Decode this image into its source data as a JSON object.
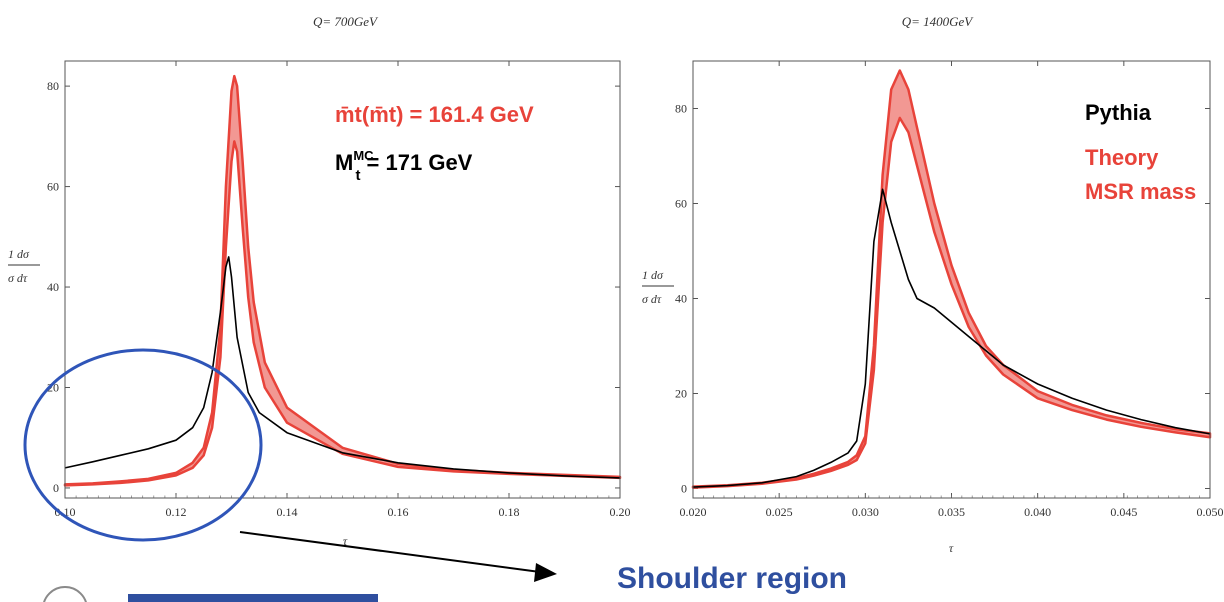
{
  "chart_data": [
    {
      "type": "line",
      "title": "Q= 700GeV",
      "xlabel": "τ",
      "ylabel": "1 dσ / σ dτ",
      "ylabel_top": "1  dσ",
      "ylabel_bottom": "σ  dτ",
      "xlim": [
        0.1,
        0.2
      ],
      "ylim": [
        -2,
        85
      ],
      "x_ticks": [
        "0.10",
        "0.12",
        "0.14",
        "0.16",
        "0.18",
        "0.20"
      ],
      "y_ticks": [
        "0",
        "20",
        "40",
        "60",
        "80"
      ],
      "x_tick_values": [
        0.1,
        0.12,
        0.14,
        0.16,
        0.18,
        0.2
      ],
      "y_tick_values": [
        0,
        20,
        40,
        60,
        80
      ],
      "annotations": {
        "theory_mass": "m̄t(m̄t) = 161.4 GeV",
        "mc_mass_main": "M",
        "mc_mass_sup": "MC",
        "mc_mass_sub": "t",
        "mc_mass_value": "= 171 GeV"
      },
      "series": [
        {
          "name": "Pythia",
          "color": "#000000",
          "x": [
            0.1,
            0.105,
            0.11,
            0.115,
            0.12,
            0.123,
            0.125,
            0.1265,
            0.128,
            0.129,
            0.1295,
            0.13,
            0.131,
            0.133,
            0.135,
            0.14,
            0.15,
            0.16,
            0.17,
            0.18,
            0.19,
            0.2
          ],
          "y": [
            4.0,
            5.2,
            6.5,
            7.8,
            9.5,
            12.0,
            16.0,
            23.0,
            35.0,
            44.0,
            46.0,
            42.0,
            30.0,
            19.0,
            15.0,
            11.0,
            7.0,
            5.0,
            3.8,
            3.0,
            2.4,
            2.0
          ]
        },
        {
          "name": "Theory",
          "color": "#e8433a",
          "band": true,
          "x": [
            0.1,
            0.105,
            0.11,
            0.115,
            0.12,
            0.123,
            0.125,
            0.1265,
            0.128,
            0.129,
            0.13,
            0.1305,
            0.131,
            0.132,
            0.133,
            0.134,
            0.136,
            0.14,
            0.15,
            0.16,
            0.17,
            0.18,
            0.19,
            0.2
          ],
          "lower": [
            0.5,
            0.7,
            1.0,
            1.5,
            2.5,
            4.0,
            6.5,
            12.0,
            26.0,
            48.0,
            65.0,
            69.0,
            67.0,
            52.0,
            38.0,
            29.0,
            20.0,
            13.0,
            6.8,
            4.2,
            3.3,
            2.8,
            2.4,
            2.0
          ],
          "upper": [
            0.7,
            0.9,
            1.3,
            1.8,
            3.0,
            5.0,
            8.0,
            15.0,
            32.0,
            60.0,
            79.0,
            82.0,
            80.0,
            65.0,
            48.0,
            37.0,
            25.0,
            16.0,
            8.0,
            4.8,
            3.6,
            3.0,
            2.6,
            2.2
          ]
        }
      ]
    },
    {
      "type": "line",
      "title": "Q= 1400GeV",
      "xlabel": "τ",
      "ylabel": "1 dσ / σ dτ",
      "ylabel_top": "1  dσ",
      "ylabel_bottom": "σ  dτ",
      "xlim": [
        0.02,
        0.05
      ],
      "ylim": [
        -2,
        90
      ],
      "x_ticks": [
        "0.020",
        "0.025",
        "0.030",
        "0.035",
        "0.040",
        "0.045",
        "0.050"
      ],
      "y_ticks": [
        "0",
        "20",
        "40",
        "60",
        "80"
      ],
      "x_tick_values": [
        0.02,
        0.025,
        0.03,
        0.035,
        0.04,
        0.045,
        0.05
      ],
      "y_tick_values": [
        0,
        20,
        40,
        60,
        80
      ],
      "legend": [
        "Pythia",
        "Theory",
        "MSR mass"
      ],
      "legend_colors": [
        "#000000",
        "#e8433a",
        "#e8433a"
      ],
      "series": [
        {
          "name": "Pythia",
          "color": "#000000",
          "x": [
            0.02,
            0.022,
            0.024,
            0.026,
            0.027,
            0.028,
            0.029,
            0.0295,
            0.03,
            0.0305,
            0.031,
            0.0315,
            0.032,
            0.0325,
            0.033,
            0.034,
            0.035,
            0.036,
            0.037,
            0.038,
            0.04,
            0.042,
            0.044,
            0.046,
            0.048,
            0.05
          ],
          "y": [
            0.3,
            0.6,
            1.2,
            2.5,
            3.8,
            5.5,
            7.5,
            10.0,
            22.0,
            52.0,
            63.0,
            56.0,
            50.0,
            44.0,
            40.0,
            38.0,
            35.0,
            32.0,
            29.0,
            26.0,
            22.0,
            19.0,
            16.5,
            14.5,
            12.8,
            11.5
          ]
        },
        {
          "name": "Theory",
          "color": "#e8433a",
          "band": true,
          "x": [
            0.02,
            0.022,
            0.024,
            0.026,
            0.027,
            0.028,
            0.029,
            0.0295,
            0.03,
            0.0305,
            0.031,
            0.0315,
            0.032,
            0.0325,
            0.033,
            0.034,
            0.035,
            0.036,
            0.037,
            0.038,
            0.04,
            0.042,
            0.044,
            0.046,
            0.048,
            0.05
          ],
          "lower": [
            0.2,
            0.5,
            1.0,
            1.9,
            2.7,
            3.7,
            5.0,
            6.0,
            9.5,
            25.0,
            56.0,
            73.0,
            78.0,
            75.0,
            68.0,
            54.0,
            43.0,
            34.0,
            28.0,
            24.0,
            19.0,
            16.5,
            14.5,
            13.0,
            11.8,
            10.8
          ],
          "upper": [
            0.4,
            0.7,
            1.2,
            2.2,
            3.1,
            4.2,
            5.6,
            7.0,
            11.0,
            30.0,
            66.0,
            84.0,
            88.0,
            84.0,
            76.0,
            60.0,
            47.0,
            37.0,
            30.0,
            26.0,
            20.5,
            17.6,
            15.4,
            13.8,
            12.5,
            11.6
          ]
        }
      ]
    }
  ],
  "callout": {
    "label": "Shoulder region",
    "color": "#2f4f9f"
  },
  "colors": {
    "theory": "#e8433a",
    "pythia": "#000000",
    "callout": "#2f4f9f"
  }
}
